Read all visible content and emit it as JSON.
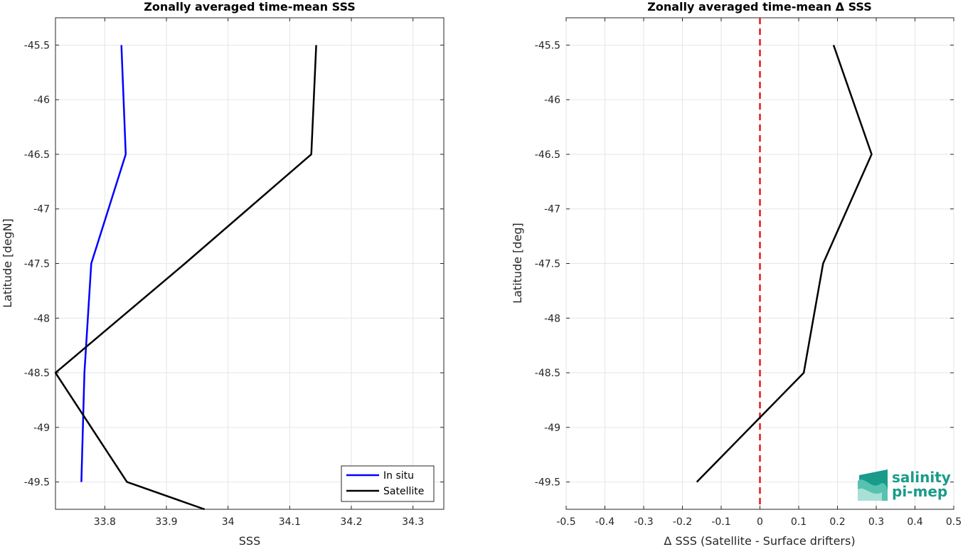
{
  "chart_data": [
    {
      "type": "line",
      "title": "Zonally averaged time-mean SSS",
      "xlabel": "SSS",
      "ylabel": "Latitude [degN]",
      "xlim": [
        33.72,
        34.35
      ],
      "ylim": [
        -49.75,
        -45.25
      ],
      "x_ticks": [
        "33.8",
        "33.9",
        "34",
        "34.1",
        "34.2",
        "34.3"
      ],
      "y_ticks": [
        "-45.5",
        "-46",
        "-46.5",
        "-47",
        "-47.5",
        "-48",
        "-48.5",
        "-49",
        "-49.5"
      ],
      "grid": true,
      "legend_position": "bottom-right",
      "series": [
        {
          "name": "In situ",
          "color": "#0000ff",
          "points": [
            [
              33.827,
              -45.5
            ],
            [
              33.834,
              -46.5
            ],
            [
              33.778,
              -47.5
            ],
            [
              33.767,
              -48.5
            ],
            [
              33.762,
              -49.5
            ]
          ]
        },
        {
          "name": "Satellite",
          "color": "#000000",
          "points": [
            [
              34.143,
              -45.5
            ],
            [
              34.135,
              -46.5
            ],
            [
              33.93,
              -47.5
            ],
            [
              33.72,
              -48.5
            ],
            [
              33.836,
              -49.5
            ],
            [
              33.962,
              -49.75
            ]
          ]
        }
      ]
    },
    {
      "type": "line",
      "title": "Zonally averaged time-mean Δ SSS",
      "xlabel": "Δ SSS (Satellite - Surface drifters)",
      "ylabel": "Latitude [deg]",
      "xlim": [
        -0.5,
        0.5
      ],
      "ylim": [
        -49.75,
        -45.25
      ],
      "x_ticks": [
        "-0.5",
        "-0.4",
        "-0.3",
        "-0.2",
        "-0.1",
        "0",
        "0.1",
        "0.2",
        "0.3",
        "0.4",
        "0.5"
      ],
      "y_ticks": [
        "-45.5",
        "-46",
        "-46.5",
        "-47",
        "-47.5",
        "-48",
        "-48.5",
        "-49",
        "-49.5"
      ],
      "grid": true,
      "reference_line": {
        "x": 0,
        "color": "#e41a1c",
        "style": "dashed"
      },
      "series": [
        {
          "color": "#000000",
          "points": [
            [
              0.19,
              -45.5
            ],
            [
              0.288,
              -46.5
            ],
            [
              0.163,
              -47.5
            ],
            [
              0.113,
              -48.5
            ],
            [
              -0.163,
              -49.5
            ]
          ]
        }
      ]
    }
  ],
  "logo": {
    "line1": "salinity",
    "line2": "pi-mep",
    "color": "#1a9b8a"
  }
}
